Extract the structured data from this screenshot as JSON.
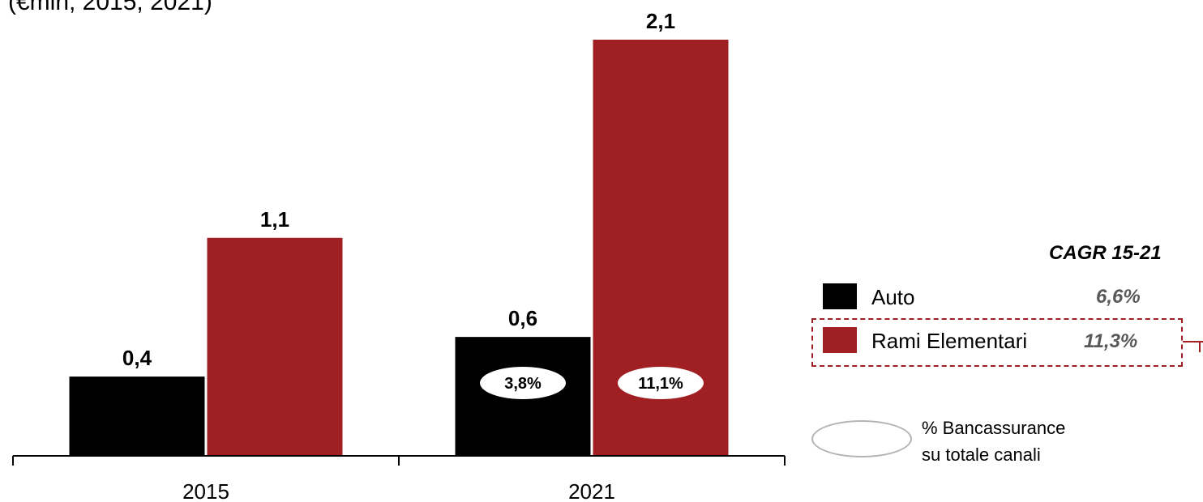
{
  "subtitle": "(€mln, 2015, 2021)",
  "colors": {
    "auto": "#000000",
    "rami": "#a01f23",
    "ellipse_border": "#b3b3b3",
    "axis": "#000000"
  },
  "chart_data": {
    "type": "bar",
    "categories": [
      "2015",
      "2021"
    ],
    "series": [
      {
        "name": "Auto",
        "values": [
          0.4,
          0.6
        ],
        "labels": [
          "0,4",
          "0,6"
        ],
        "color": "#000000"
      },
      {
        "name": "Rami Elementari",
        "values": [
          1.1,
          2.1
        ],
        "labels": [
          "1,1",
          "2,1"
        ],
        "color": "#a01f23"
      }
    ],
    "share_labels": [
      {
        "category": "2021",
        "series": "Auto",
        "text": "3,8%"
      },
      {
        "category": "2021",
        "series": "Rami Elementari",
        "text": "11,1%"
      }
    ],
    "ylim": [
      0,
      2.1
    ],
    "legend_position": "right"
  },
  "legend": {
    "cagr_header": "CAGR 15-21",
    "items": [
      {
        "label": "Auto",
        "cagr": "6,6%"
      },
      {
        "label": "Rami Elementari",
        "cagr": "11,3%"
      }
    ],
    "ellipse_description_line1": "% Bancassurance",
    "ellipse_description_line2": "su totale canali"
  }
}
